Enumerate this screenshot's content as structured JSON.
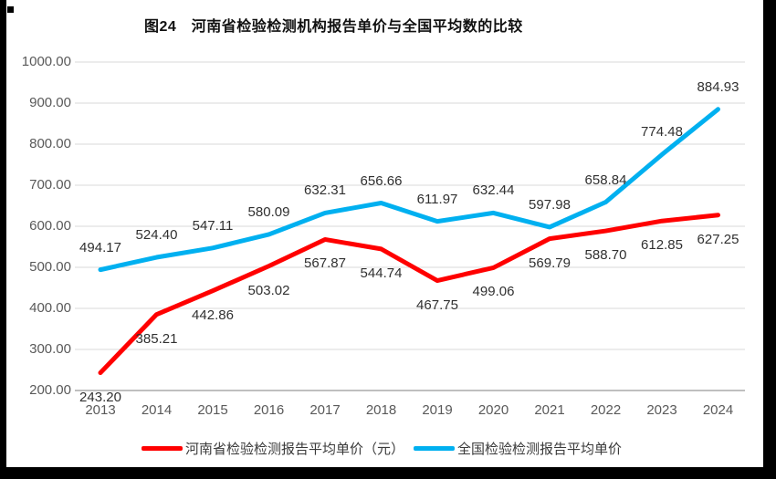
{
  "figure": {
    "title": "图24　河南省检验检测机构报告单价与全国平均数的比较"
  },
  "chart_data": {
    "type": "line",
    "categories": [
      "2013",
      "2014",
      "2015",
      "2016",
      "2017",
      "2018",
      "2019",
      "2020",
      "2021",
      "2022",
      "2023",
      "2024"
    ],
    "series": [
      {
        "name": "河南省检验检测报告平均单价（元）",
        "color": "#FF0000",
        "label_side": "below",
        "values": [
          243.2,
          385.21,
          442.86,
          503.02,
          567.87,
          544.74,
          467.75,
          499.06,
          569.79,
          588.7,
          612.85,
          627.25
        ]
      },
      {
        "name": "全国检验检测报告平均单价",
        "color": "#00B0F0",
        "label_side": "above",
        "values": [
          494.17,
          524.4,
          547.11,
          580.09,
          632.31,
          656.66,
          611.97,
          632.44,
          597.98,
          658.84,
          774.48,
          884.93
        ]
      }
    ],
    "ylim": [
      200,
      1000
    ],
    "ytick_step": 100,
    "value_format_decimals": 2,
    "grid": true,
    "legend_position": "bottom",
    "colors": {
      "gridline": "#D9D9D9",
      "axis_line": "#BFBFBF",
      "axis_label": "#595959",
      "data_label": "#303030",
      "frame": "#000000"
    }
  }
}
